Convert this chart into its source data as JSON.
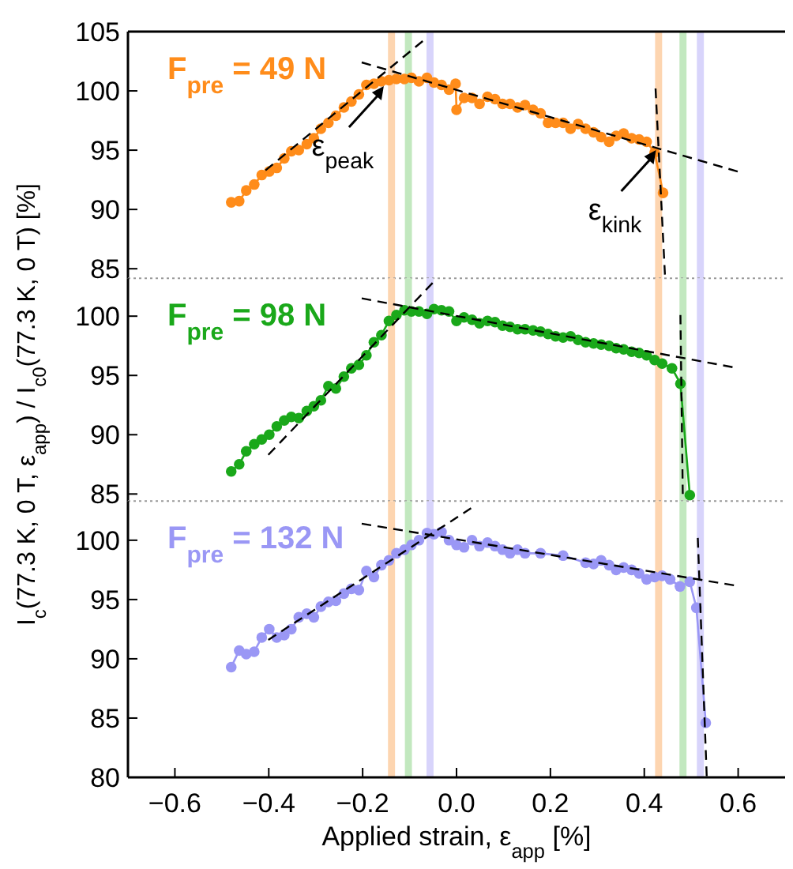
{
  "chart_data": [
    {
      "type": "line",
      "xlim": [
        -0.7,
        0.7
      ],
      "ylim": [
        84.2,
        105
      ],
      "yticks": [
        85,
        90,
        95,
        100,
        105
      ],
      "tick_labels": "y",
      "marker": "circle",
      "bands": [
        {
          "axis": "x",
          "from": -0.146,
          "to": -0.131,
          "color": "#fdd5b0"
        },
        {
          "axis": "x",
          "from": -0.11,
          "to": -0.095,
          "color": "#c2e8bf"
        },
        {
          "axis": "x",
          "from": -0.064,
          "to": -0.049,
          "color": "#d8d4fb"
        },
        {
          "axis": "x",
          "from": 0.423,
          "to": 0.438,
          "color": "#fdd5b0"
        },
        {
          "axis": "x",
          "from": 0.475,
          "to": 0.49,
          "color": "#c2e8bf"
        },
        {
          "axis": "x",
          "from": 0.512,
          "to": 0.527,
          "color": "#d8d4fb"
        }
      ],
      "annotations": [
        {
          "text": "ε$_{peak}$",
          "x": -0.155,
          "y": 100.4
        },
        {
          "text": "ε$_{kink}$",
          "x": 0.425,
          "y": 95.0
        }
      ],
      "series": [
        {
          "name": "F$_{pre}$ = 49 N",
          "color": "#ff8c1a",
          "x": [
            -0.48,
            -0.463,
            -0.448,
            -0.431,
            -0.415,
            -0.399,
            -0.383,
            -0.367,
            -0.352,
            -0.336,
            -0.319,
            -0.304,
            -0.289,
            -0.273,
            -0.257,
            -0.24,
            -0.224,
            -0.208,
            -0.192,
            -0.176,
            -0.16,
            -0.144,
            -0.128,
            -0.111,
            -0.096,
            -0.08,
            -0.063,
            -0.048,
            -0.032,
            -0.016,
            -0.002,
            0.0,
            0.016,
            0.033,
            0.049,
            0.066,
            0.082,
            0.098,
            0.114,
            0.13,
            0.146,
            0.163,
            0.179,
            0.195,
            0.211,
            0.227,
            0.243,
            0.259,
            0.275,
            0.292,
            0.308,
            0.325,
            0.34,
            0.356,
            0.373,
            0.389,
            0.405,
            0.422,
            0.44
          ],
          "values": [
            90.6,
            90.7,
            91.6,
            92.1,
            92.9,
            93.2,
            93.5,
            94.3,
            94.9,
            95.0,
            95.5,
            96.0,
            96.8,
            97.3,
            97.9,
            98.6,
            99.1,
            99.7,
            100.5,
            100.6,
            100.8,
            100.9,
            101.0,
            101.0,
            101.1,
            100.8,
            101.1,
            100.7,
            100.5,
            100.1,
            100.6,
            98.4,
            99.4,
            99.4,
            98.9,
            99.5,
            99.3,
            98.9,
            98.9,
            98.6,
            98.8,
            98.4,
            98.1,
            97.3,
            97.3,
            97.3,
            96.8,
            97.2,
            96.8,
            96.5,
            96.1,
            95.7,
            96.2,
            96.4,
            96.0,
            95.9,
            95.7,
            94.8,
            91.4
          ]
        },
        {
          "type": "line",
          "color": "#000000",
          "line_style": "dashed",
          "marker": "none",
          "x": [
            -0.407,
            -0.072
          ],
          "values": [
            93.3,
            104.2
          ]
        },
        {
          "type": "line",
          "color": "#000000",
          "line_style": "dashed",
          "marker": "none",
          "x": [
            -0.202,
            0.599
          ],
          "values": [
            102.4,
            93.2
          ]
        },
        {
          "type": "line",
          "color": "#000000",
          "line_style": "dashed",
          "marker": "none",
          "x": [
            0.424,
            0.444
          ],
          "values": [
            100.2,
            84.5
          ]
        }
      ]
    },
    {
      "type": "line",
      "xlim": [
        -0.7,
        0.7
      ],
      "ylim": [
        84.4,
        103.2
      ],
      "yticks": [
        85,
        90,
        95,
        100
      ],
      "tick_labels": "y",
      "marker": "circle",
      "ylabel": "I$_{c}$(77.3 K, 0 T, ε$_{app}$) / I$_{c0}$(77.3 K, 0 T) [%]",
      "bands": [
        {
          "axis": "x",
          "from": -0.146,
          "to": -0.131,
          "color": "#fdd5b0"
        },
        {
          "axis": "x",
          "from": -0.11,
          "to": -0.095,
          "color": "#c2e8bf"
        },
        {
          "axis": "x",
          "from": -0.064,
          "to": -0.049,
          "color": "#d8d4fb"
        },
        {
          "axis": "x",
          "from": 0.423,
          "to": 0.438,
          "color": "#fdd5b0"
        },
        {
          "axis": "x",
          "from": 0.475,
          "to": 0.49,
          "color": "#c2e8bf"
        },
        {
          "axis": "x",
          "from": 0.512,
          "to": 0.527,
          "color": "#d8d4fb"
        }
      ],
      "series": [
        {
          "name": "F$_{pre}$ = 98 N",
          "color": "#1aa81a",
          "x": [
            -0.48,
            -0.463,
            -0.448,
            -0.431,
            -0.415,
            -0.399,
            -0.383,
            -0.367,
            -0.352,
            -0.336,
            -0.319,
            -0.304,
            -0.289,
            -0.273,
            -0.257,
            -0.24,
            -0.224,
            -0.208,
            -0.192,
            -0.176,
            -0.16,
            -0.144,
            -0.128,
            -0.111,
            -0.096,
            -0.08,
            -0.063,
            -0.048,
            -0.032,
            -0.016,
            0.0,
            0.016,
            0.033,
            0.049,
            0.066,
            0.082,
            0.098,
            0.114,
            0.13,
            0.146,
            0.163,
            0.179,
            0.195,
            0.211,
            0.227,
            0.243,
            0.259,
            0.275,
            0.292,
            0.308,
            0.325,
            0.34,
            0.356,
            0.373,
            0.389,
            0.405,
            0.422,
            0.438,
            0.459,
            0.477,
            0.497
          ],
          "values": [
            86.9,
            87.5,
            88.6,
            89.2,
            89.6,
            90.0,
            90.7,
            91.2,
            91.5,
            91.4,
            92.0,
            92.4,
            92.9,
            94.1,
            93.9,
            94.9,
            95.6,
            95.9,
            96.7,
            97.8,
            98.4,
            99.6,
            100.1,
            100.5,
            100.4,
            100.4,
            100.2,
            100.6,
            100.5,
            100.4,
            99.6,
            99.9,
            99.7,
            99.4,
            99.6,
            99.5,
            99.2,
            99.1,
            98.9,
            98.9,
            98.8,
            98.7,
            98.5,
            98.3,
            98.2,
            98.3,
            98.0,
            97.8,
            97.7,
            97.6,
            97.5,
            97.3,
            97.2,
            97.0,
            96.9,
            96.7,
            96.3,
            96.0,
            95.6,
            94.3,
            84.9
          ]
        },
        {
          "type": "line",
          "color": "#000000",
          "line_style": "dashed",
          "marker": "none",
          "x": [
            -0.401,
            -0.051
          ],
          "values": [
            88.3,
            102.8
          ]
        },
        {
          "type": "line",
          "color": "#000000",
          "line_style": "dashed",
          "marker": "none",
          "x": [
            -0.202,
            0.588
          ],
          "values": [
            101.5,
            95.7
          ]
        },
        {
          "type": "line",
          "color": "#000000",
          "line_style": "dashed",
          "marker": "none",
          "x": [
            0.477,
            0.482
          ],
          "values": [
            100.1,
            85.0
          ]
        }
      ]
    },
    {
      "type": "line",
      "xlim": [
        -0.7,
        0.7
      ],
      "ylim": [
        80,
        103.3
      ],
      "xticks": [
        {
          "value": -0.6,
          "label": "−0.6"
        },
        {
          "value": -0.4,
          "label": "−0.4"
        },
        {
          "value": -0.2,
          "label": "−0.2"
        },
        {
          "value": 0,
          "label": "0.0"
        },
        {
          "value": 0.2,
          "label": "0.2"
        },
        {
          "value": 0.4,
          "label": "0.4"
        },
        {
          "value": 0.6,
          "label": "0.6"
        }
      ],
      "yticks": [
        80,
        85,
        90,
        95,
        100
      ],
      "marker": "circle",
      "xlabel": "Applied strain, ε$_{app}$ [%]",
      "bands": [
        {
          "axis": "x",
          "from": -0.146,
          "to": -0.131,
          "color": "#fdd5b0"
        },
        {
          "axis": "x",
          "from": -0.11,
          "to": -0.095,
          "color": "#c2e8bf"
        },
        {
          "axis": "x",
          "from": -0.064,
          "to": -0.049,
          "color": "#d8d4fb"
        },
        {
          "axis": "x",
          "from": 0.423,
          "to": 0.438,
          "color": "#fdd5b0"
        },
        {
          "axis": "x",
          "from": 0.475,
          "to": 0.49,
          "color": "#c2e8bf"
        },
        {
          "axis": "x",
          "from": 0.512,
          "to": 0.527,
          "color": "#d8d4fb"
        }
      ],
      "series": [
        {
          "name": "F$_{pre}$ = 132 N",
          "color": "#9a97f5",
          "x": [
            -0.48,
            -0.463,
            -0.448,
            -0.431,
            -0.415,
            -0.399,
            -0.383,
            -0.367,
            -0.352,
            -0.336,
            -0.319,
            -0.304,
            -0.289,
            -0.273,
            -0.257,
            -0.24,
            -0.224,
            -0.208,
            -0.192,
            -0.176,
            -0.16,
            -0.144,
            -0.128,
            -0.111,
            -0.096,
            -0.08,
            -0.063,
            -0.048,
            -0.032,
            -0.016,
            0.0,
            0.016,
            0.033,
            0.049,
            0.066,
            0.082,
            0.098,
            0.114,
            0.13,
            0.146,
            0.179,
            0.227,
            0.275,
            0.292,
            0.308,
            0.325,
            0.34,
            0.356,
            0.373,
            0.389,
            0.405,
            0.422,
            0.438,
            0.455,
            0.476,
            0.497,
            0.511,
            0.531
          ],
          "values": [
            89.3,
            90.7,
            90.4,
            90.6,
            91.8,
            92.5,
            91.8,
            92.0,
            92.5,
            93.5,
            93.8,
            93.5,
            94.4,
            94.8,
            94.9,
            95.5,
            95.9,
            95.8,
            97.4,
            96.9,
            97.9,
            98.3,
            98.9,
            99.2,
            99.6,
            100.0,
            100.6,
            100.5,
            100.7,
            100.0,
            99.6,
            99.4,
            100.0,
            99.5,
            99.8,
            99.5,
            99.2,
            98.9,
            99.2,
            98.9,
            98.9,
            98.7,
            98.1,
            98.0,
            98.3,
            97.9,
            97.5,
            97.7,
            97.5,
            97.2,
            96.7,
            96.9,
            97.0,
            96.7,
            96.1,
            96.5,
            94.3,
            84.6
          ]
        },
        {
          "type": "line",
          "color": "#000000",
          "line_style": "dashed",
          "marker": "none",
          "x": [
            -0.401,
            0.031
          ],
          "values": [
            91.6,
            102.7
          ]
        },
        {
          "type": "line",
          "color": "#000000",
          "line_style": "dashed",
          "marker": "none",
          "x": [
            -0.202,
            0.591
          ],
          "values": [
            101.4,
            96.2
          ]
        },
        {
          "type": "line",
          "color": "#000000",
          "line_style": "dashed",
          "marker": "none",
          "x": [
            0.514,
            0.533
          ],
          "values": [
            100.2,
            80.1
          ]
        }
      ]
    }
  ]
}
